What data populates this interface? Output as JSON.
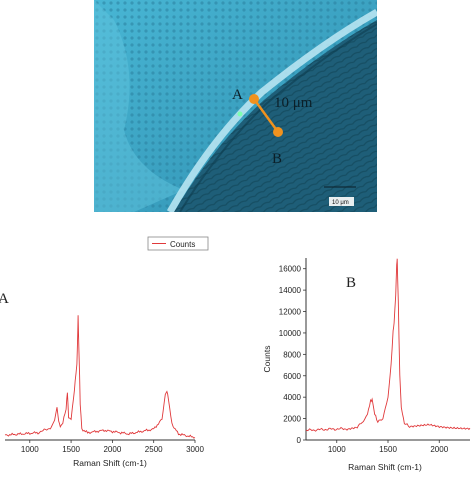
{
  "micrograph": {
    "point_a_label": "A",
    "point_b_label": "B",
    "scale_text": "10 μm",
    "scalebar_text": "10 μm",
    "colors": {
      "background": "#3fa8c8",
      "marker": "#f0921e",
      "marker_line": "#f0921e"
    }
  },
  "chart_data": [
    {
      "type": "line",
      "panel_label": "A",
      "legend": [
        "Counts"
      ],
      "legend_placement": "top",
      "xlabel": "Raman Shift (cm-1)",
      "ylabel": "",
      "x_ticks": [
        1000,
        1500,
        2000,
        2500,
        3000
      ],
      "xlim": [
        700,
        3000
      ],
      "ylim": [
        0,
        14000
      ],
      "line_color": "#e0393b",
      "series": [
        {
          "x": [
            700,
            900,
            1100,
            1250,
            1300,
            1330,
            1350,
            1370,
            1400,
            1440,
            1455,
            1470,
            1500,
            1530,
            1550,
            1570,
            1580,
            1585,
            1595,
            1610,
            1630,
            1700,
            1900,
            2200,
            2500,
            2600,
            2640,
            2660,
            2680,
            2720,
            2800,
            3000
          ],
          "y": [
            400,
            500,
            600,
            1000,
            1700,
            2600,
            1600,
            1100,
            1400,
            2600,
            4000,
            1800,
            1700,
            3400,
            4900,
            6200,
            8600,
            10200,
            7500,
            3000,
            900,
            600,
            800,
            500,
            900,
            1700,
            3800,
            4000,
            3300,
            1300,
            500,
            200
          ]
        }
      ]
    },
    {
      "type": "line",
      "panel_label": "B",
      "legend": [],
      "xlabel": "Raman Shift (cm-1)",
      "ylabel": "Counts",
      "x_ticks": [
        1000,
        1500,
        2000
      ],
      "y_ticks": [
        0,
        2000,
        4000,
        6000,
        8000,
        10000,
        12000,
        14000,
        16000
      ],
      "xlim": [
        700,
        2300
      ],
      "ylim": [
        0,
        17000
      ],
      "line_color": "#e0393b",
      "series": [
        {
          "x": [
            700,
            900,
            1100,
            1200,
            1260,
            1300,
            1330,
            1345,
            1370,
            1400,
            1450,
            1500,
            1530,
            1550,
            1560,
            1575,
            1585,
            1590,
            1600,
            1615,
            1630,
            1660,
            1700,
            1800,
            1900,
            2000,
            2100,
            2200,
            2300
          ],
          "y": [
            900,
            1000,
            1050,
            1250,
            1700,
            2500,
            3600,
            3800,
            2400,
            1700,
            2000,
            4000,
            7000,
            10200,
            11000,
            13500,
            16300,
            17000,
            13000,
            6000,
            3000,
            1600,
            1300,
            1400,
            1500,
            1300,
            1200,
            1150,
            1100
          ]
        }
      ]
    }
  ]
}
